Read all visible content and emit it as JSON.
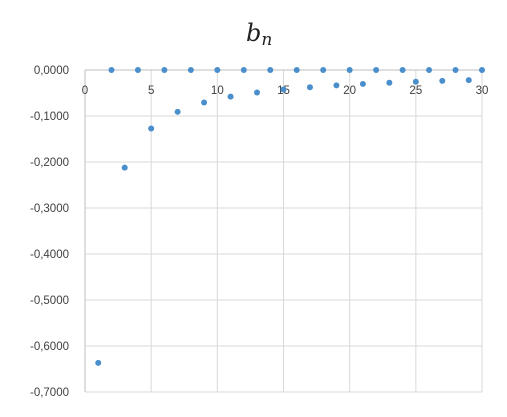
{
  "chart_data": {
    "type": "scatter",
    "title": "b",
    "title_subscript": "n",
    "xlabel": "",
    "ylabel": "",
    "xlim": [
      0,
      30
    ],
    "ylim": [
      -0.7,
      0
    ],
    "x_ticks": [
      "0",
      "5",
      "10",
      "15",
      "20",
      "25",
      "30"
    ],
    "y_ticks": [
      "0,0000",
      "-0,1000",
      "-0,2000",
      "-0,3000",
      "-0,4000",
      "-0,5000",
      "-0,6000",
      "-0,7000"
    ],
    "grid": true,
    "marker_color": "#4A8FCC",
    "series": [
      {
        "x": [
          1,
          2,
          3,
          4,
          5,
          6,
          7,
          8,
          9,
          10,
          11,
          12,
          13,
          14,
          15,
          16,
          17,
          18,
          19,
          20,
          21,
          22,
          23,
          24,
          25,
          26,
          27,
          28,
          29,
          30
        ],
        "values": [
          -0.6366,
          0,
          -0.2122,
          0,
          -0.1273,
          0,
          -0.0909,
          0,
          -0.0707,
          0,
          -0.0579,
          0,
          -0.049,
          0,
          -0.0424,
          0,
          -0.0374,
          0,
          -0.0335,
          0,
          -0.0303,
          0,
          -0.0277,
          0,
          -0.0255,
          0,
          -0.0236,
          0,
          -0.022,
          0
        ]
      }
    ]
  }
}
